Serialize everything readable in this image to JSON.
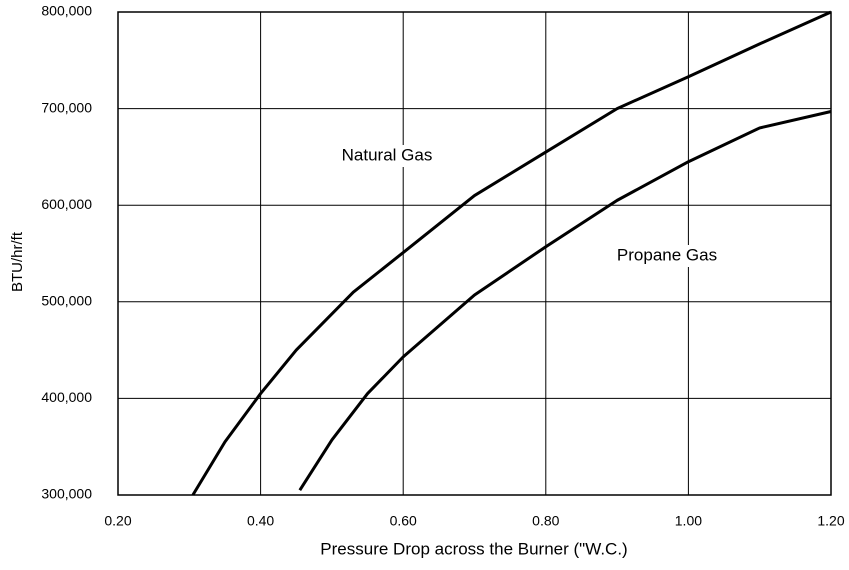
{
  "chart_data": {
    "type": "line",
    "xlabel": "Pressure Drop across the Burner (\"W.C.)",
    "ylabel": "BTU/hr/ft",
    "series": [
      {
        "name": "Natural Gas",
        "color": "#000000",
        "x": [
          0.305,
          0.35,
          0.4,
          0.45,
          0.53,
          0.6,
          0.7,
          0.8,
          0.9,
          1.0,
          1.1,
          1.2
        ],
        "values": [
          300000,
          355000,
          405000,
          450000,
          510000,
          551000,
          610000,
          655000,
          700000,
          733000,
          767000,
          800000
        ]
      },
      {
        "name": "Propane Gas",
        "color": "#000000",
        "x": [
          0.455,
          0.5,
          0.55,
          0.6,
          0.7,
          0.8,
          0.9,
          1.0,
          1.1,
          1.2
        ],
        "values": [
          305000,
          357000,
          405000,
          443000,
          507000,
          557000,
          605000,
          645000,
          680000,
          697000
        ]
      }
    ],
    "xlim": [
      0.2,
      1.2
    ],
    "xticks": [
      {
        "value": 0.2,
        "label": "0.20"
      },
      {
        "value": 0.4,
        "label": "0.40"
      },
      {
        "value": 0.6,
        "label": "0.60"
      },
      {
        "value": 0.8,
        "label": "0.80"
      },
      {
        "value": 1.0,
        "label": "1.00"
      },
      {
        "value": 1.2,
        "label": "1.20"
      }
    ],
    "ylim": [
      300000,
      800000
    ],
    "yticks": [
      {
        "value": 300000,
        "label": "300,000"
      },
      {
        "value": 400000,
        "label": "400,000"
      },
      {
        "value": 500000,
        "label": "500,000"
      },
      {
        "value": 600000,
        "label": "600,000"
      },
      {
        "value": 700000,
        "label": "700,000"
      },
      {
        "value": 800000,
        "label": "800,000"
      }
    ],
    "grid": true
  }
}
